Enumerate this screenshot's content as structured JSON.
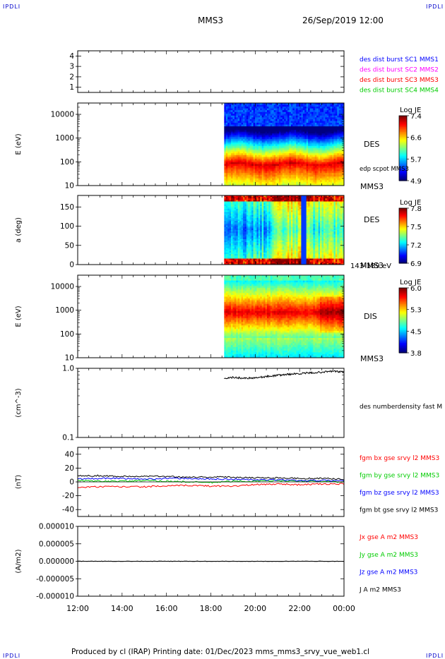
{
  "header": {
    "corner_label": "IPDLI",
    "spacecraft": "MMS3",
    "datetime": "26/Sep/2019 12:00"
  },
  "footer": {
    "text": "Produced by cl (IRAP)   Printing date: 01/Dec/2023   mms_mms3_srvy_vue_web1.cl"
  },
  "time_axis": {
    "tick_labels": [
      "12:00",
      "14:00",
      "16:00",
      "18:00",
      "20:00",
      "22:00",
      "00:00"
    ],
    "start_hours": 12,
    "end_hours": 24
  },
  "colors": {
    "red": "#ff0000",
    "green": "#00cc00",
    "blue": "#0000ff",
    "magenta": "#ff00ff",
    "black": "#000000"
  },
  "chart_data": [
    {
      "type": "line",
      "yticks": [
        "4",
        "3",
        "2",
        "1"
      ],
      "ylim": [
        0.5,
        4.5
      ],
      "legend": [
        {
          "name": "des dist burst SC1 MMS1",
          "color": "#0000ff"
        },
        {
          "name": "des dist burst SC2 MMS2",
          "color": "#ff00ff"
        },
        {
          "name": "des dist burst SC3 MMS3",
          "color": "#ff0000"
        },
        {
          "name": "des dist burst SC4 MMS4",
          "color": "#00cc00"
        }
      ]
    },
    {
      "type": "heatmap",
      "ylabel": "E (eV)",
      "yscale": "log",
      "yticks": [
        "10000",
        "1000",
        "100",
        "10"
      ],
      "ylim": [
        10,
        30000
      ],
      "data_start_hours": 18.6,
      "label": "DES",
      "sublabel": "edp scpot MMS3",
      "spacecraft": "MMS3",
      "colorbar": {
        "title": "Log JE",
        "ticks": [
          "7.4",
          "6.6",
          "5.7",
          "4.9"
        ],
        "range": [
          4.9,
          7.4
        ]
      },
      "profile": "des_energy"
    },
    {
      "type": "heatmap",
      "ylabel": "a (deg)",
      "yticks": [
        "150",
        "100",
        "50",
        "0"
      ],
      "ylim": [
        0,
        180
      ],
      "data_start_hours": 18.6,
      "label": "DES",
      "spacecraft": "MMS3",
      "energy_range": "143-189 eV",
      "colorbar": {
        "title": "Log JE",
        "ticks": [
          "7.8",
          "7.5",
          "7.2",
          "6.9"
        ],
        "range": [
          6.9,
          7.8
        ]
      },
      "profile": "des_pitch"
    },
    {
      "type": "heatmap",
      "ylabel": "E (eV)",
      "yscale": "log",
      "yticks": [
        "10000",
        "1000",
        "100",
        "10"
      ],
      "ylim": [
        10,
        30000
      ],
      "data_start_hours": 18.6,
      "label": "DIS",
      "spacecraft": "MMS3",
      "colorbar": {
        "title": "Log JE",
        "ticks": [
          "6.0",
          "5.3",
          "4.5",
          "3.8"
        ],
        "range": [
          3.8,
          6.0
        ]
      },
      "profile": "dis_energy"
    },
    {
      "type": "line",
      "ylabel": "(cm^-3)",
      "yscale": "log",
      "yticks": [
        "1.0",
        "0.1"
      ],
      "ylim": [
        0.1,
        1.0
      ],
      "series": [
        {
          "name": "des numberdensity fast M",
          "color": "#000000",
          "x": [
            18.6,
            19.0,
            19.5,
            20.0,
            20.5,
            21.0,
            21.5,
            22.0,
            22.5,
            23.0,
            23.5,
            24.0
          ],
          "y": [
            0.72,
            0.74,
            0.72,
            0.73,
            0.76,
            0.79,
            0.82,
            0.84,
            0.86,
            0.88,
            0.91,
            0.88
          ]
        }
      ]
    },
    {
      "type": "line",
      "ylabel": "(nT)",
      "yticks": [
        "40",
        "20",
        "0",
        "-20",
        "-40"
      ],
      "ylim": [
        -50,
        50
      ],
      "series": [
        {
          "name": "fgm bx gse srvy l2 MMS3",
          "color": "#ff0000",
          "x": [
            12,
            13,
            14,
            15,
            16,
            17,
            18,
            19,
            20,
            21,
            22,
            23,
            24
          ],
          "y": [
            -8,
            -7,
            -7,
            -7,
            -6,
            -5,
            -6,
            -6,
            -4,
            -3,
            -4,
            -3,
            -3
          ]
        },
        {
          "name": "fgm by gse srvy l2 MMS3",
          "color": "#00cc00",
          "x": [
            12,
            13,
            14,
            15,
            16,
            17,
            18,
            19,
            20,
            21,
            22,
            23,
            24
          ],
          "y": [
            2,
            1,
            1,
            2,
            1,
            0,
            -1,
            1,
            1,
            2,
            1,
            1,
            0
          ]
        },
        {
          "name": "fgm bz gse srvy l2 MMS3",
          "color": "#0000ff",
          "x": [
            12,
            13,
            14,
            15,
            16,
            17,
            18,
            19,
            20,
            21,
            22,
            23,
            24
          ],
          "y": [
            4,
            5,
            5,
            4,
            5,
            5,
            4,
            4,
            3,
            3,
            2,
            2,
            2
          ]
        },
        {
          "name": "fgm bt gse srvy l2 MMS3",
          "color": "#000000",
          "x": [
            12,
            13,
            14,
            15,
            16,
            17,
            18,
            19,
            20,
            21,
            22,
            23,
            24
          ],
          "y": [
            9,
            9,
            8,
            8,
            8,
            7,
            7,
            7,
            6,
            6,
            5,
            5,
            4
          ]
        }
      ]
    },
    {
      "type": "line",
      "ylabel": "(A/m2)",
      "yticks": [
        "0.000010",
        "0.000005",
        "0.000000",
        "-0.000005",
        "-0.000010"
      ],
      "ylim": [
        -1e-05,
        1e-05
      ],
      "series": [
        {
          "name": "Jx gse A m2 MMS3",
          "color": "#ff0000"
        },
        {
          "name": "Jy gse A m2 MMS3",
          "color": "#00cc00"
        },
        {
          "name": "Jz gse A m2 MMS3",
          "color": "#0000ff"
        },
        {
          "name": "J A m2 MMS3",
          "color": "#000000",
          "x": [
            12,
            13,
            14,
            15,
            16,
            17,
            18,
            19,
            20,
            21,
            22,
            23,
            24
          ],
          "y": [
            0,
            0,
            0,
            0,
            0,
            0,
            0,
            0,
            0,
            0,
            0,
            0,
            0
          ]
        }
      ]
    }
  ]
}
